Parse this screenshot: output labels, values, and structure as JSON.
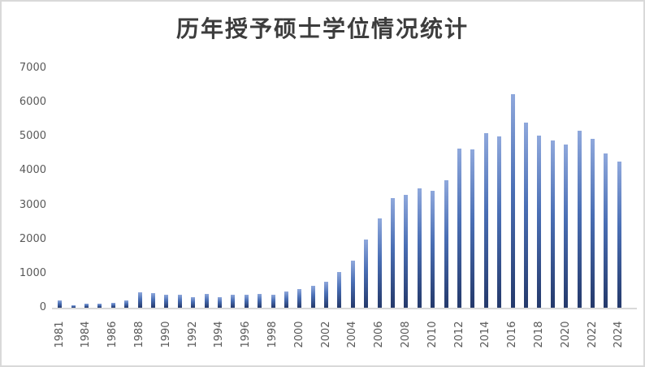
{
  "chart": {
    "title": "历年授予硕士学位情况统计"
  },
  "chart_data": {
    "type": "bar",
    "title": "历年授予硕士学位情况统计",
    "xlabel": "",
    "ylabel": "",
    "categories": [
      "1981",
      "1982",
      "1984",
      "1985",
      "1986",
      "1987",
      "1988",
      "1989",
      "1990",
      "1991",
      "1992",
      "1993",
      "1994",
      "1995",
      "1996",
      "1997",
      "1998",
      "1999",
      "2000",
      "2001",
      "2002",
      "2003",
      "2004",
      "2005",
      "2006",
      "2007",
      "2008",
      "2009",
      "2010",
      "2011",
      "2012",
      "2013",
      "2014",
      "2015",
      "2016",
      "2017",
      "2018",
      "2019",
      "2020",
      "2021",
      "2022",
      "2023",
      "2024"
    ],
    "values": [
      210,
      80,
      120,
      120,
      140,
      210,
      460,
      420,
      370,
      370,
      300,
      400,
      310,
      370,
      390,
      400,
      380,
      480,
      545,
      630,
      760,
      1050,
      1380,
      2000,
      2610,
      3200,
      3300,
      3500,
      3420,
      3730,
      4660,
      4640,
      5100,
      5000,
      6240,
      5400,
      5020,
      4880,
      4760,
      5180,
      4930,
      4510,
      4270
    ],
    "x_tick_labels": [
      "1981",
      "1984",
      "1986",
      "1988",
      "1990",
      "1992",
      "1994",
      "1996",
      "1998",
      "2000",
      "2002",
      "2004",
      "2006",
      "2008",
      "2010",
      "2012",
      "2014",
      "2016",
      "2018",
      "2020",
      "2022",
      "2024"
    ],
    "x_tick_every": 2,
    "y_ticks": [
      "0",
      "1000",
      "2000",
      "3000",
      "4000",
      "5000",
      "6000",
      "7000"
    ],
    "ylim": [
      0,
      7000
    ],
    "grid": false,
    "legend_position": "none",
    "colors": {
      "bar_gradient_top": "#8FA8DC",
      "bar_gradient_bottom": "#24396B",
      "axis_line": "#D9D9D9",
      "tick_label": "#595959",
      "title": "#3D3D3D",
      "chart_border": "#D9D9D9"
    }
  }
}
